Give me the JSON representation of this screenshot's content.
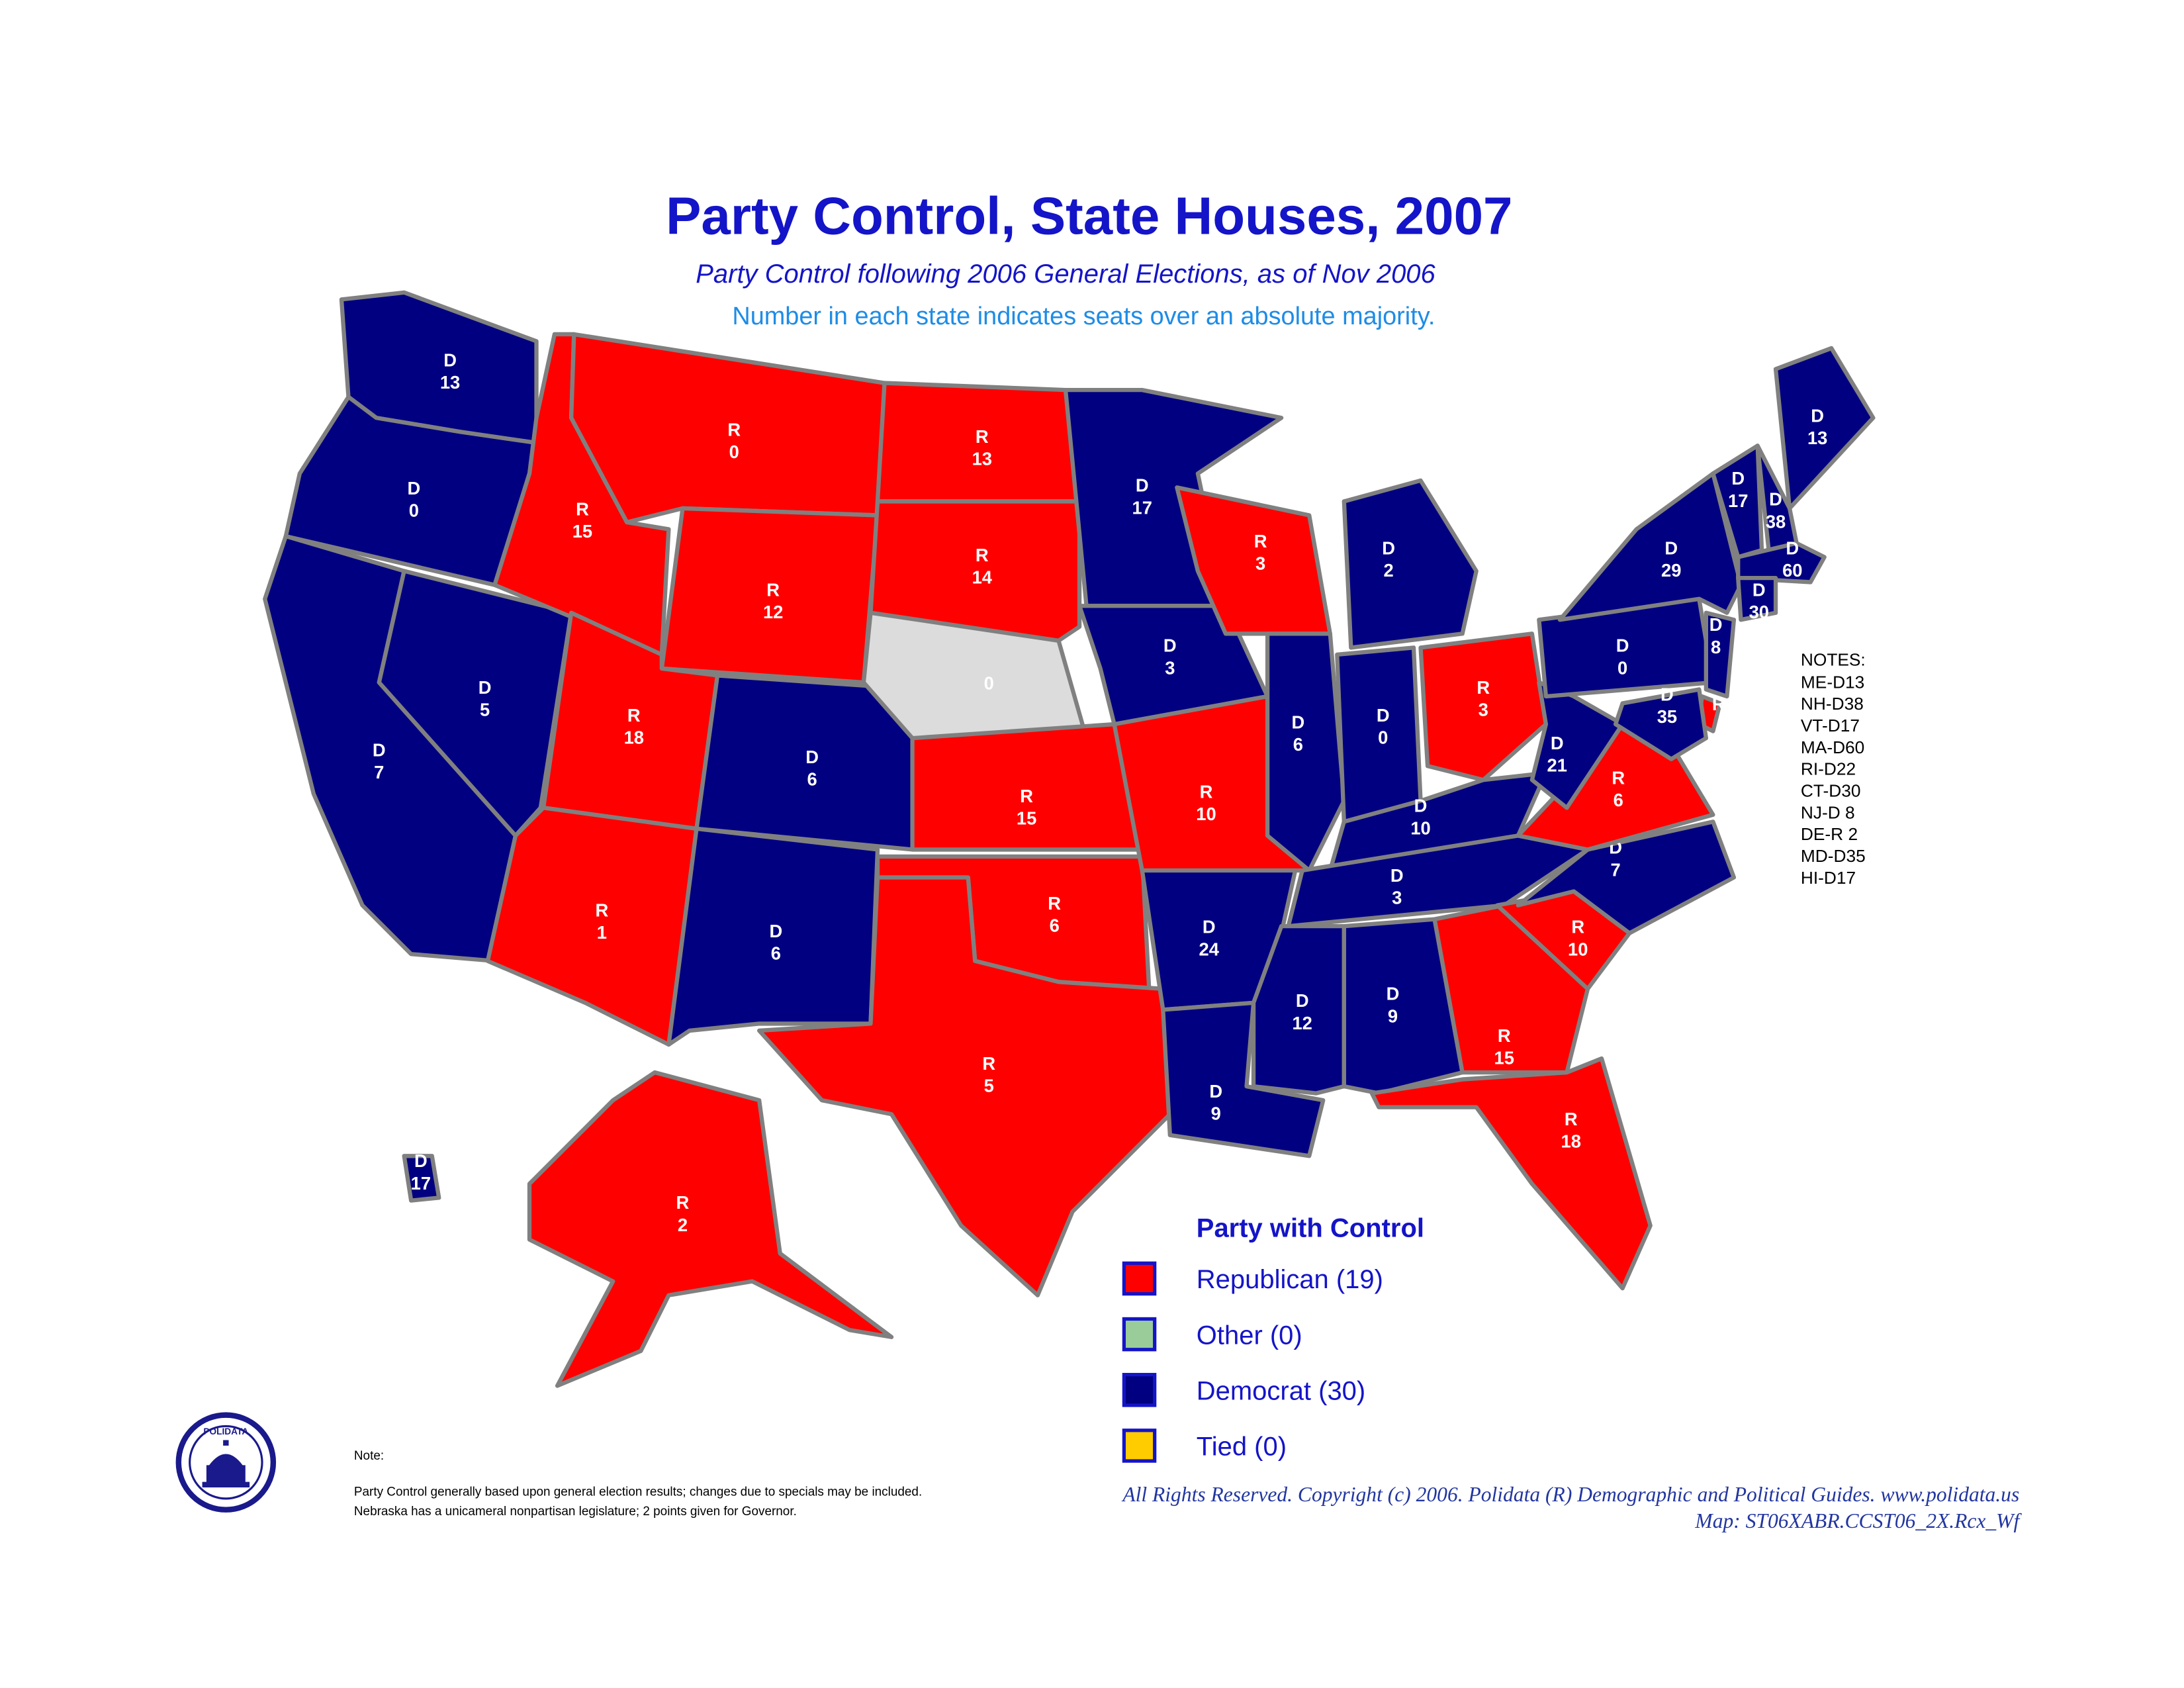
{
  "header": {
    "title": "Party Control, State Houses, 2007",
    "subtitle": "Party Control following 2006 General Elections, as of Nov 2006",
    "explanation": "Number in each state indicates seats over an absolute majority."
  },
  "states": [
    {
      "party": "D",
      "seats": 13,
      "color": "#000080"
    },
    {
      "party": "D",
      "seats": 0,
      "color": "#000080"
    },
    {
      "party": "D",
      "seats": 7,
      "color": "#000080"
    },
    {
      "party": "D",
      "seats": 5,
      "color": "#000080"
    },
    {
      "party": "R",
      "seats": 15,
      "color": "#ff0000"
    },
    {
      "party": "R",
      "seats": 0,
      "color": "#ff0000"
    },
    {
      "party": "R",
      "seats": 12,
      "color": "#ff0000"
    },
    {
      "party": "R",
      "seats": 18,
      "color": "#ff0000"
    },
    {
      "party": "R",
      "seats": 1,
      "color": "#ff0000"
    },
    {
      "party": "D",
      "seats": 6,
      "color": "#000080"
    },
    {
      "party": "D",
      "seats": 6,
      "color": "#000080"
    },
    {
      "party": "R",
      "seats": 13,
      "color": "#ff0000"
    },
    {
      "party": "R",
      "seats": 14,
      "color": "#ff0000"
    },
    {
      "seats": 0,
      "color": "#dcdcdc"
    },
    {
      "party": "R",
      "seats": 15,
      "color": "#ff0000"
    },
    {
      "party": "R",
      "seats": 6,
      "color": "#ff0000"
    },
    {
      "party": "R",
      "seats": 5,
      "color": "#ff0000"
    },
    {
      "party": "D",
      "seats": 17,
      "color": "#000080"
    },
    {
      "party": "D",
      "seats": 3,
      "color": "#000080"
    },
    {
      "party": "R",
      "seats": 10,
      "color": "#ff0000"
    },
    {
      "party": "D",
      "seats": 24,
      "color": "#000080"
    },
    {
      "party": "D",
      "seats": 9,
      "color": "#000080"
    },
    {
      "party": "R",
      "seats": 3,
      "color": "#ff0000"
    },
    {
      "party": "D",
      "seats": 6,
      "color": "#000080"
    },
    {
      "party": "D",
      "seats": 2,
      "color": "#000080"
    },
    {
      "party": "D",
      "seats": 0,
      "color": "#000080"
    },
    {
      "party": "R",
      "seats": 3,
      "color": "#ff0000"
    },
    {
      "party": "D",
      "seats": 10,
      "color": "#000080"
    },
    {
      "party": "D",
      "seats": 3,
      "color": "#000080"
    },
    {
      "party": "D",
      "seats": 12,
      "color": "#000080"
    },
    {
      "party": "D",
      "seats": 9,
      "color": "#000080"
    },
    {
      "party": "R",
      "seats": 15,
      "color": "#ff0000"
    },
    {
      "party": "R",
      "seats": 18,
      "color": "#ff0000"
    },
    {
      "party": "R",
      "seats": 10,
      "color": "#ff0000"
    },
    {
      "party": "D",
      "seats": 7,
      "color": "#000080"
    },
    {
      "party": "R",
      "seats": 6,
      "color": "#ff0000"
    },
    {
      "party": "D",
      "seats": 21,
      "color": "#000080"
    },
    {
      "party": "D",
      "seats": 0,
      "color": "#000080"
    },
    {
      "party": "D",
      "seats": 29,
      "color": "#000080"
    },
    {
      "party": "D",
      "seats": 13,
      "color": "#000080"
    },
    {
      "party": "D",
      "seats": 38,
      "color": "#000080"
    },
    {
      "party": "D",
      "seats": 17,
      "color": "#000080"
    },
    {
      "party": "D",
      "seats": 60,
      "color": "#000080"
    },
    {
      "party": "D",
      "seats": 30,
      "color": "#000080"
    },
    {
      "party": "D",
      "seats": 8,
      "color": "#000080"
    },
    {
      "party": "R",
      "color": "#ff0000"
    },
    {
      "party": "D",
      "seats": 35,
      "color": "#000080"
    },
    {
      "party": "R",
      "seats": 2,
      "color": "#ff0000"
    },
    {
      "party": "D",
      "seats": 17,
      "color": "#000080"
    }
  ],
  "notes": {
    "title": "NOTES:",
    "items": [
      "ME-D13",
      "NH-D38",
      "VT-D17",
      "MA-D60",
      "RI-D22",
      "CT-D30",
      "NJ-D 8",
      "DE-R 2",
      "MD-D35",
      "HI-D17"
    ]
  },
  "legend": {
    "title": "Party with Control",
    "items": [
      {
        "label": "Republican (19)",
        "color": "#ff0000"
      },
      {
        "label": "Other (0)",
        "color": "#99cc99"
      },
      {
        "label": "Democrat (30)",
        "color": "#000080"
      },
      {
        "label": "Tied (0)",
        "color": "#ffcc00"
      }
    ]
  },
  "logo": {
    "text": "POLIDATA"
  },
  "footnote": {
    "title": "Note:",
    "lines": [
      "Party Control generally based upon general election results; changes due to specials may be included.",
      "Nebraska has a unicameral nonpartisan legislature;  2 points given for Governor."
    ]
  },
  "footer": {
    "copyright": "All Rights Reserved. Copyright (c) 2006. Polidata (R) Demographic and Political Guides. www.polidata.us",
    "map_id": "Map: ST06XABR.CCST06_2X.Rcx_Wf"
  }
}
